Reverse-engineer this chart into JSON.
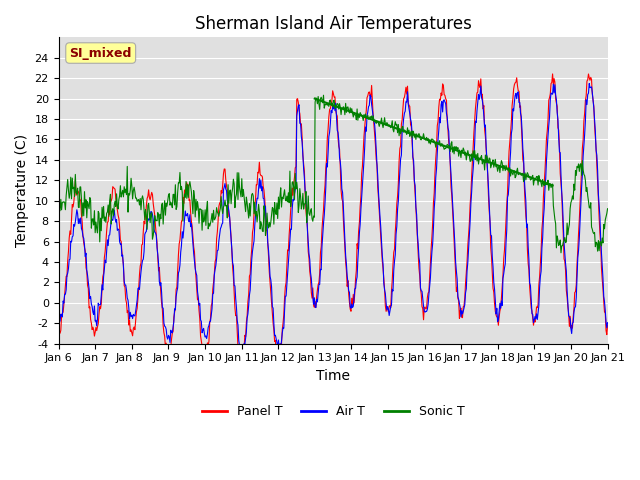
{
  "title": "Sherman Island Air Temperatures",
  "xlabel": "Time",
  "ylabel": "Temperature (C)",
  "ylim": [
    -4,
    26
  ],
  "yticks": [
    -4,
    -2,
    0,
    2,
    4,
    6,
    8,
    10,
    12,
    14,
    16,
    18,
    20,
    22,
    24
  ],
  "xtick_labels": [
    "Jan 6",
    "Jan 7",
    "Jan 8 ",
    "Jan 9 ",
    "Jan 10",
    "Jan 11",
    "Jan 12",
    "Jan 13",
    "Jan 14",
    "Jan 15",
    "Jan 16",
    "Jan 17",
    "Jan 18",
    "Jan 19",
    "Jan 20",
    "Jan 21"
  ],
  "annotation_label": "SI_mixed",
  "annotation_color": "#8B0000",
  "annotation_bg": "#FFFF99",
  "legend_entries": [
    "Panel T",
    "Air T",
    "Sonic T"
  ],
  "line_colors": [
    "red",
    "blue",
    "green"
  ],
  "bg_color": "#e0e0e0",
  "title_fontsize": 12,
  "tick_fontsize": 8,
  "label_fontsize": 10
}
